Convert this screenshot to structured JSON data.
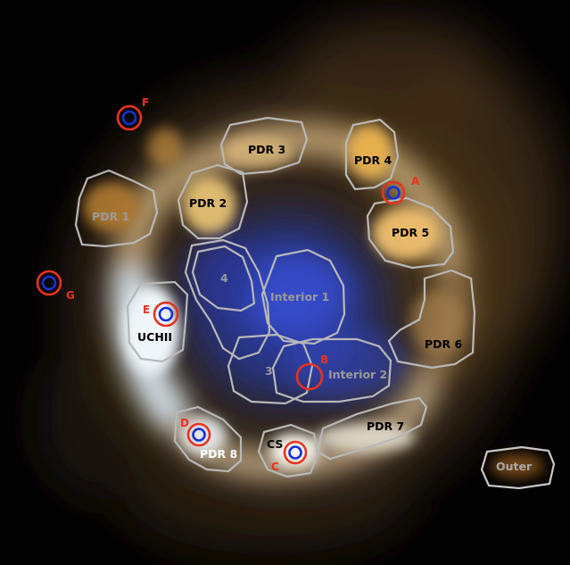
{
  "colors": {
    "region_outline": "#b8b8b8",
    "label_dark": "#000000",
    "label_light": "#ffffff",
    "label_grey": "#9a9a9a",
    "marker_outer": "#e8321e",
    "marker_inner": "#1530d8"
  },
  "regions": [
    {
      "id": "pdr1",
      "label": "PDR 1",
      "label_tone": "grey"
    },
    {
      "id": "pdr2",
      "label": "PDR 2",
      "label_tone": "dark"
    },
    {
      "id": "pdr3",
      "label": "PDR 3",
      "label_tone": "dark"
    },
    {
      "id": "pdr4",
      "label": "PDR 4",
      "label_tone": "dark"
    },
    {
      "id": "pdr5",
      "label": "PDR 5",
      "label_tone": "dark"
    },
    {
      "id": "pdr6",
      "label": "PDR 6",
      "label_tone": "dark"
    },
    {
      "id": "pdr7",
      "label": "PDR 7",
      "label_tone": "dark"
    },
    {
      "id": "pdr8",
      "label": "PDR 8",
      "label_tone": "light"
    },
    {
      "id": "uchii",
      "label": "UCHII",
      "label_tone": "dark"
    },
    {
      "id": "r4",
      "label": "4",
      "label_tone": "grey"
    },
    {
      "id": "interior1",
      "label": "Interior 1",
      "label_tone": "grey"
    },
    {
      "id": "r3",
      "label": "3",
      "label_tone": "grey"
    },
    {
      "id": "interior2",
      "label": "Interior 2",
      "label_tone": "grey"
    },
    {
      "id": "cs",
      "label": "CS",
      "label_tone": "dark"
    },
    {
      "id": "outer",
      "label": "Outer",
      "label_tone": "grey"
    }
  ],
  "markers": [
    {
      "id": "A",
      "label": "A",
      "has_inner": true
    },
    {
      "id": "B",
      "label": "B",
      "has_inner": false
    },
    {
      "id": "C",
      "label": "C",
      "has_inner": true
    },
    {
      "id": "D",
      "label": "D",
      "has_inner": true
    },
    {
      "id": "E",
      "label": "E",
      "has_inner": true
    },
    {
      "id": "F",
      "label": "F",
      "has_inner": true
    },
    {
      "id": "G",
      "label": "G",
      "has_inner": true
    }
  ]
}
